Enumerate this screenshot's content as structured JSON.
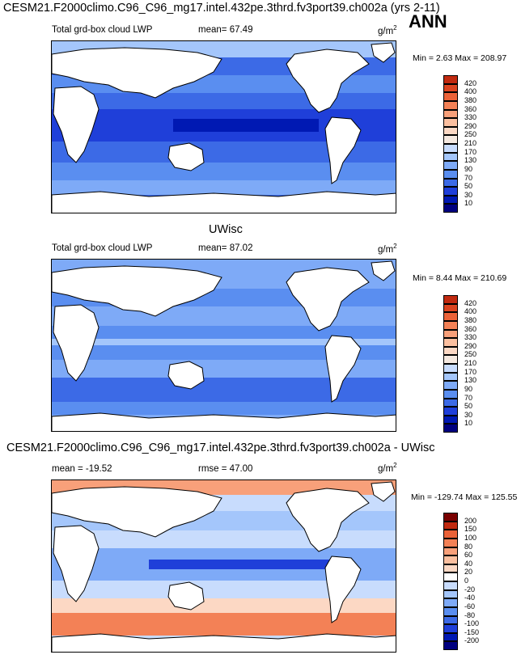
{
  "figure": {
    "title": "CESM21.F2000climo.C96_C96_mg17.intel.432pe.3thrd.fv3port39.ch002a (yrs 2-11)",
    "season": "ANN",
    "units_base": "g/m",
    "units_exp": "2",
    "diff_title": "CESM21.F2000climo.C96_C96_mg17.intel.432pe.3thrd.fv3port39.ch002a - UWisc",
    "obs_title": "UWisc"
  },
  "colors": {
    "abs_scale": [
      "#00007f",
      "#0019b3",
      "#1f3fd9",
      "#3c6ae6",
      "#5a8ef0",
      "#7eaaf7",
      "#a4c6fb",
      "#c8dcfd",
      "#f5e9e0",
      "#fcd8c4",
      "#fbbf9f",
      "#f8a07a",
      "#f38156",
      "#eb6238",
      "#dc4420",
      "#c12a10",
      "#9c1408",
      "#7a0000"
    ],
    "diff_scale": [
      "#00007f",
      "#0019b3",
      "#1f3fd9",
      "#3c6ae6",
      "#5a8ef0",
      "#7eaaf7",
      "#a4c6fb",
      "#c8dcfd",
      "#ffffff",
      "#fcd8c4",
      "#fbbf9f",
      "#f8a07a",
      "#f38156",
      "#eb6238",
      "#c12a10",
      "#7a0000"
    ]
  },
  "chart_data": [
    {
      "type": "heatmap",
      "title": "Total grd-box cloud LWP",
      "mean_label": "mean=",
      "mean_value": "67.49",
      "stats_label": "Min =   2.63 Max = 208.97",
      "min": 2.63,
      "max": 208.97,
      "colorbar_levels": [
        "10",
        "30",
        "50",
        "70",
        "90",
        "130",
        "170",
        "210",
        "250",
        "290",
        "330",
        "360",
        "380",
        "400",
        "420"
      ]
    },
    {
      "type": "heatmap",
      "title": "Total grd-box cloud LWP",
      "mean_label": "mean=",
      "mean_value": "87.02",
      "stats_label": "Min =   8.44 Max = 210.69",
      "min": 8.44,
      "max": 210.69,
      "colorbar_levels": [
        "10",
        "30",
        "50",
        "70",
        "90",
        "130",
        "170",
        "210",
        "250",
        "290",
        "330",
        "360",
        "380",
        "400",
        "420"
      ]
    },
    {
      "type": "heatmap",
      "title": "",
      "mean_label": "mean =",
      "mean_value": "-19.52",
      "rmse_label": "rmse =",
      "rmse_value": "47.00",
      "stats_label": "Min = -129.74 Max = 125.55",
      "min": -129.74,
      "max": 125.55,
      "colorbar_levels": [
        "-200",
        "-150",
        "-100",
        "-80",
        "-60",
        "-40",
        "-20",
        "0",
        "20",
        "40",
        "60",
        "80",
        "100",
        "150",
        "200"
      ]
    }
  ]
}
